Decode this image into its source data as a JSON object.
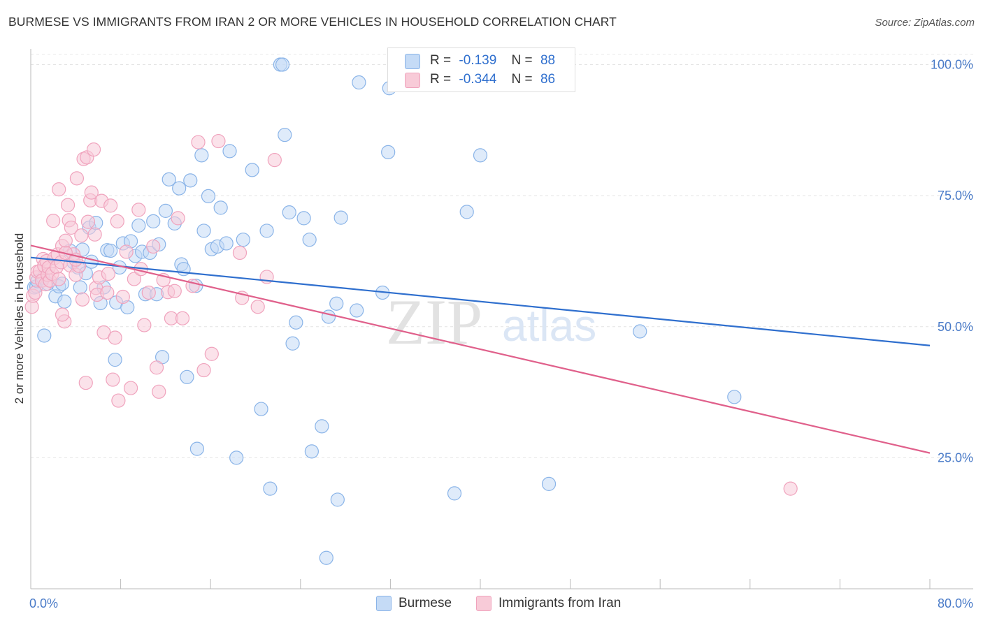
{
  "title": "BURMESE VS IMMIGRANTS FROM IRAN 2 OR MORE VEHICLES IN HOUSEHOLD CORRELATION CHART",
  "source": "Source: ZipAtlas.com",
  "watermark": {
    "zip": "ZIP",
    "atlas": "atlas"
  },
  "legend_top": [
    {
      "r_label": "R =",
      "r_value": "-0.139",
      "n_label": "N =",
      "n_value": "88"
    },
    {
      "r_label": "R =",
      "r_value": "-0.344",
      "n_label": "N =",
      "n_value": "86"
    }
  ],
  "chart_data": {
    "type": "scatter",
    "title": "BURMESE VS IMMIGRANTS FROM IRAN 2 OR MORE VEHICLES IN HOUSEHOLD CORRELATION CHART",
    "xlabel": "",
    "ylabel": "2 or more Vehicles in Household",
    "xlim": [
      0,
      80
    ],
    "ylim": [
      0,
      103
    ],
    "x_tick_labels": [
      "0.0%",
      "80.0%"
    ],
    "y_ticks": [
      25,
      50,
      75,
      100
    ],
    "y_tick_labels": [
      "25.0%",
      "50.0%",
      "75.0%",
      "100.0%"
    ],
    "grid": true,
    "legend_position": "bottom",
    "series": [
      {
        "name": "Burmese",
        "color": "#8ab4e8",
        "fill": "#c5dbf6",
        "trend_color": "#2f6fce",
        "r": -0.139,
        "n": 88,
        "trend": {
          "x": [
            0,
            80
          ],
          "y": [
            63.2,
            46.4
          ]
        },
        "points": [
          [
            0.3,
            57.5
          ],
          [
            0.5,
            57.7
          ],
          [
            0.6,
            58.7
          ],
          [
            1.2,
            48.3
          ],
          [
            1.1,
            59.3
          ],
          [
            1.5,
            58.2
          ],
          [
            2.2,
            55.8
          ],
          [
            2.5,
            57.7
          ],
          [
            2.8,
            58.2
          ],
          [
            3.0,
            54.8
          ],
          [
            3.5,
            64.5
          ],
          [
            3.8,
            62.3
          ],
          [
            4.2,
            61.3
          ],
          [
            4.4,
            57.5
          ],
          [
            4.6,
            64.7
          ],
          [
            4.9,
            60.2
          ],
          [
            5.2,
            68.9
          ],
          [
            5.4,
            62.4
          ],
          [
            5.8,
            69.8
          ],
          [
            6.2,
            54.5
          ],
          [
            6.5,
            57.5
          ],
          [
            6.8,
            64.6
          ],
          [
            7.1,
            64.5
          ],
          [
            7.5,
            43.7
          ],
          [
            7.6,
            54.6
          ],
          [
            7.9,
            61.3
          ],
          [
            8.2,
            65.9
          ],
          [
            8.6,
            53.7
          ],
          [
            8.9,
            66.3
          ],
          [
            9.3,
            63.5
          ],
          [
            9.6,
            69.3
          ],
          [
            9.9,
            64.3
          ],
          [
            10.2,
            56.2
          ],
          [
            10.6,
            64.1
          ],
          [
            10.9,
            70.1
          ],
          [
            11.2,
            56.2
          ],
          [
            11.4,
            65.7
          ],
          [
            11.7,
            44.2
          ],
          [
            12.0,
            72.1
          ],
          [
            12.3,
            78.1
          ],
          [
            12.8,
            69.7
          ],
          [
            13.2,
            76.4
          ],
          [
            13.4,
            61.9
          ],
          [
            13.6,
            61.0
          ],
          [
            13.9,
            40.4
          ],
          [
            14.2,
            77.9
          ],
          [
            14.7,
            57.8
          ],
          [
            14.8,
            26.7
          ],
          [
            15.2,
            82.7
          ],
          [
            15.4,
            68.3
          ],
          [
            15.8,
            74.9
          ],
          [
            16.1,
            64.8
          ],
          [
            16.6,
            65.3
          ],
          [
            16.9,
            72.7
          ],
          [
            17.4,
            65.9
          ],
          [
            17.7,
            83.5
          ],
          [
            18.3,
            25.0
          ],
          [
            18.9,
            66.6
          ],
          [
            19.7,
            79.9
          ],
          [
            20.5,
            34.3
          ],
          [
            21.0,
            68.3
          ],
          [
            21.3,
            19.1
          ],
          [
            22.2,
            100.0
          ],
          [
            22.4,
            100.0
          ],
          [
            22.6,
            86.6
          ],
          [
            23.0,
            71.8
          ],
          [
            23.3,
            46.8
          ],
          [
            23.6,
            50.8
          ],
          [
            24.3,
            70.7
          ],
          [
            24.8,
            66.6
          ],
          [
            25.0,
            26.2
          ],
          [
            25.9,
            31.0
          ],
          [
            26.3,
            5.9
          ],
          [
            26.5,
            51.9
          ],
          [
            27.2,
            54.4
          ],
          [
            27.3,
            17.0
          ],
          [
            27.6,
            70.8
          ],
          [
            29.0,
            53.1
          ],
          [
            29.2,
            96.6
          ],
          [
            31.3,
            56.5
          ],
          [
            31.8,
            83.3
          ],
          [
            31.9,
            95.5
          ],
          [
            37.7,
            18.2
          ],
          [
            38.8,
            71.9
          ],
          [
            40.0,
            82.7
          ],
          [
            46.1,
            20.0
          ],
          [
            54.2,
            49.1
          ],
          [
            62.6,
            36.6
          ]
        ]
      },
      {
        "name": "Immigrants from Iran",
        "color": "#f0a3bd",
        "fill": "#f8cbd8",
        "trend_color": "#e0608b",
        "r": -0.344,
        "n": 86,
        "trend": {
          "x": [
            0,
            80
          ],
          "y": [
            65.5,
            25.9
          ]
        },
        "points": [
          [
            0.1,
            53.8
          ],
          [
            0.2,
            55.9
          ],
          [
            0.4,
            56.5
          ],
          [
            0.5,
            59.4
          ],
          [
            0.6,
            60.5
          ],
          [
            0.8,
            60.6
          ],
          [
            1.0,
            58.8
          ],
          [
            1.1,
            62.9
          ],
          [
            1.2,
            61.6
          ],
          [
            1.3,
            58.1
          ],
          [
            1.4,
            62.5
          ],
          [
            1.5,
            59.9
          ],
          [
            1.6,
            61.3
          ],
          [
            1.7,
            58.8
          ],
          [
            1.9,
            60.1
          ],
          [
            2.1,
            63.1
          ],
          [
            2.3,
            61.4
          ],
          [
            2.4,
            63.8
          ],
          [
            2.5,
            59.1
          ],
          [
            2.7,
            62.3
          ],
          [
            2.0,
            70.2
          ],
          [
            2.5,
            76.2
          ],
          [
            2.8,
            65.4
          ],
          [
            3.0,
            51.0
          ],
          [
            3.1,
            66.4
          ],
          [
            3.3,
            73.2
          ],
          [
            3.4,
            70.3
          ],
          [
            3.5,
            61.7
          ],
          [
            3.6,
            68.9
          ],
          [
            3.8,
            63.8
          ],
          [
            4.0,
            59.9
          ],
          [
            4.1,
            78.3
          ],
          [
            4.3,
            61.6
          ],
          [
            4.5,
            67.4
          ],
          [
            4.6,
            55.2
          ],
          [
            4.7,
            82.0
          ],
          [
            4.9,
            39.3
          ],
          [
            5.0,
            82.3
          ],
          [
            5.1,
            70.0
          ],
          [
            5.3,
            74.1
          ],
          [
            5.4,
            75.6
          ],
          [
            5.6,
            83.8
          ],
          [
            5.7,
            67.6
          ],
          [
            5.8,
            57.4
          ],
          [
            5.9,
            56.1
          ],
          [
            6.1,
            59.4
          ],
          [
            6.3,
            74.0
          ],
          [
            6.5,
            48.9
          ],
          [
            6.8,
            56.5
          ],
          [
            6.9,
            60.1
          ],
          [
            7.1,
            73.1
          ],
          [
            7.3,
            39.9
          ],
          [
            7.5,
            47.9
          ],
          [
            7.7,
            70.1
          ],
          [
            7.8,
            35.9
          ],
          [
            8.2,
            55.7
          ],
          [
            8.5,
            64.3
          ],
          [
            8.9,
            38.3
          ],
          [
            9.2,
            59.1
          ],
          [
            9.6,
            72.3
          ],
          [
            9.8,
            61.0
          ],
          [
            10.1,
            50.3
          ],
          [
            10.5,
            56.5
          ],
          [
            10.9,
            65.3
          ],
          [
            11.2,
            42.2
          ],
          [
            11.4,
            37.6
          ],
          [
            11.8,
            58.9
          ],
          [
            12.2,
            56.6
          ],
          [
            12.5,
            51.6
          ],
          [
            12.8,
            56.8
          ],
          [
            13.1,
            70.7
          ],
          [
            13.5,
            51.6
          ],
          [
            14.4,
            57.8
          ],
          [
            14.9,
            85.2
          ],
          [
            15.4,
            41.7
          ],
          [
            16.1,
            44.8
          ],
          [
            16.7,
            85.4
          ],
          [
            18.6,
            64.1
          ],
          [
            18.8,
            55.5
          ],
          [
            20.2,
            53.8
          ],
          [
            21.0,
            59.5
          ],
          [
            21.7,
            81.8
          ],
          [
            2.8,
            52.3
          ],
          [
            3.1,
            64.1
          ],
          [
            4.0,
            62.8
          ],
          [
            67.6,
            19.1
          ]
        ]
      }
    ]
  },
  "legend_bottom": [
    {
      "label": "Burmese",
      "swatch": "#c5dbf6",
      "border": "#8ab4e8"
    },
    {
      "label": "Immigrants from Iran",
      "swatch": "#f8cbd8",
      "border": "#f0a3bd"
    }
  ]
}
